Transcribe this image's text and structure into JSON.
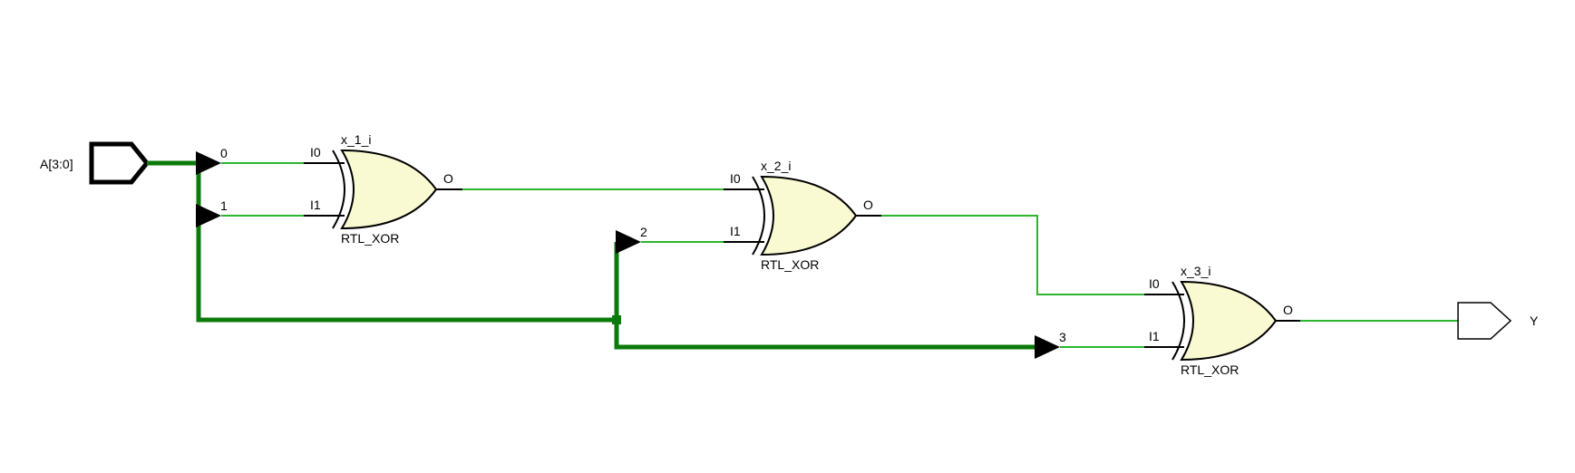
{
  "colors": {
    "wire": "#2db52d",
    "bus": "#0a7a0a",
    "gate_fill": "#fafad2",
    "stroke": "#000000"
  },
  "ports": {
    "input": {
      "label": "A[3:0]"
    },
    "output": {
      "label": "Y"
    }
  },
  "bus_taps": [
    {
      "label": "0"
    },
    {
      "label": "1"
    },
    {
      "label": "2"
    },
    {
      "label": "3"
    }
  ],
  "gates": [
    {
      "instance": "x_1_i",
      "type": "RTL_XOR",
      "pin_in0": "I0",
      "pin_in1": "I1",
      "pin_out": "O"
    },
    {
      "instance": "x_2_i",
      "type": "RTL_XOR",
      "pin_in0": "I0",
      "pin_in1": "I1",
      "pin_out": "O"
    },
    {
      "instance": "x_3_i",
      "type": "RTL_XOR",
      "pin_in0": "I0",
      "pin_in1": "I1",
      "pin_out": "O"
    }
  ],
  "icons": {
    "input_port": "input-port-icon",
    "output_port": "output-port-icon",
    "tap": "bus-tap-arrow-icon",
    "gate": "xor-gate-icon"
  }
}
